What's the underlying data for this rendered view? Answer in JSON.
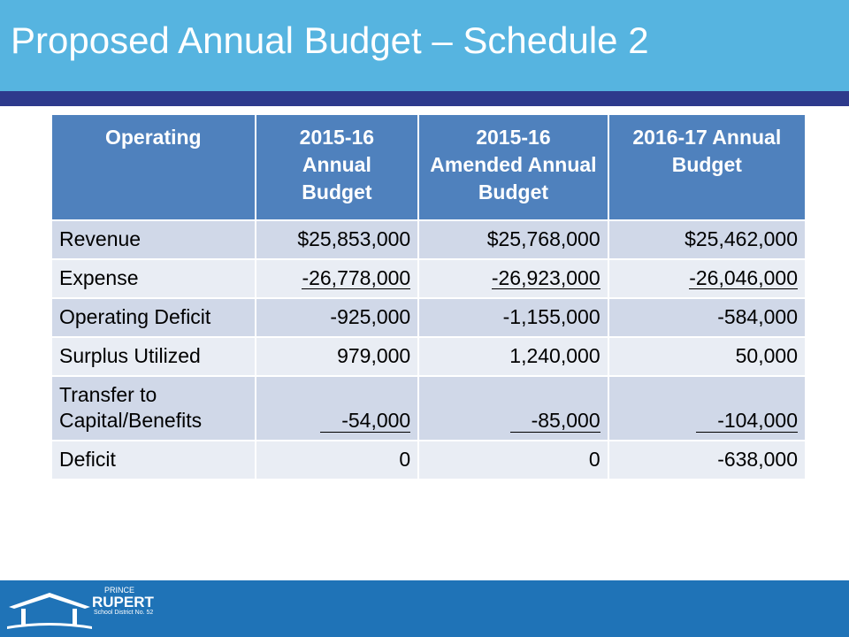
{
  "header": {
    "title": "Proposed Annual Budget – Schedule 2"
  },
  "table": {
    "columns": [
      "Operating",
      "2015-16 Annual Budget",
      "2015-16 Amended Annual Budget",
      "2016-17 Annual Budget"
    ],
    "rows": [
      [
        "Revenue",
        "$25,853,000",
        "$25,768,000",
        "$25,462,000"
      ],
      [
        "Expense",
        "-26,778,000",
        "-26,923,000",
        "-26,046,000"
      ],
      [
        "Operating Deficit",
        "-925,000",
        "-1,155,000",
        "-584,000"
      ],
      [
        "Surplus Utilized",
        "979,000",
        "1,240,000",
        "50,000"
      ],
      [
        "Transfer to Capital/Benefits",
        "-54,000",
        "-85,000",
        "-104,000"
      ],
      [
        "Deficit",
        "0",
        "0",
        "-638,000"
      ]
    ],
    "underlined_rows": [
      1,
      4
    ]
  },
  "footer": {
    "logo": {
      "line1": "PRINCE",
      "line2": "RUPERT",
      "line3": "School District No. 52"
    }
  }
}
